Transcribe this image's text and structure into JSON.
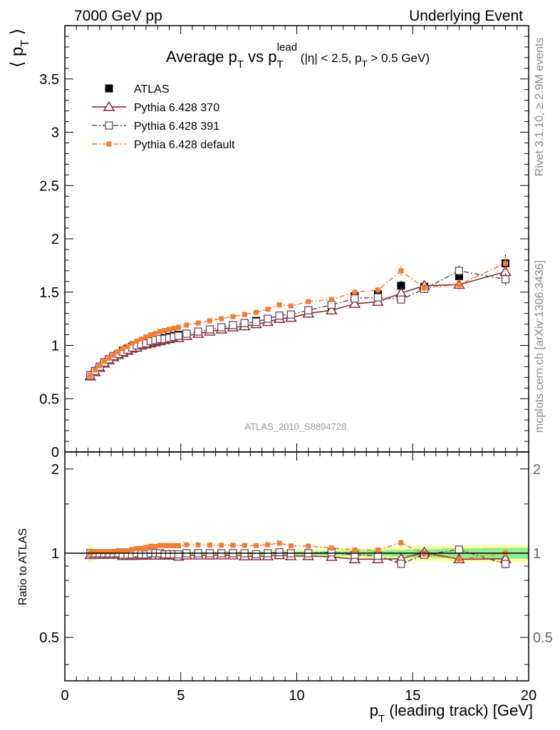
{
  "header": {
    "left": "7000 GeV pp",
    "right": "Underlying Event"
  },
  "side_labels": {
    "rivet": "Rivet 3.1.10, ≥ 2.9M events",
    "mcplots": "mcplots.cern.ch [arXiv:1306.3436]"
  },
  "chart_data": [
    {
      "type": "scatter",
      "title": "Average pT vs pTlead (|η| < 2.5, pT > 0.5 GeV)",
      "title_parts": {
        "a": "Average p",
        "a_sub": "T",
        "b": " vs p",
        "b_sub": "T",
        "b_sup": "lead",
        "c": " (|η| < 2.5, p",
        "c_sub": "T",
        "d": " > 0.5 GeV)"
      },
      "ylabel": "⟨ pT ⟩",
      "ylabel_parts": {
        "l": "⟨ p",
        "sub": "T",
        "r": " ⟩"
      },
      "xlabel": "",
      "xlim": [
        0,
        20
      ],
      "ylim": [
        0,
        4.0
      ],
      "yticks": [
        0,
        0.5,
        1,
        1.5,
        2,
        2.5,
        3,
        3.5
      ],
      "ytick_labels": [
        "0",
        "0.5",
        "1",
        "1.5",
        "2",
        "2.5",
        "3",
        "3.5"
      ],
      "watermark": "ATLAS_2010_S8894728",
      "legend_position": "top-left",
      "x": [
        1.1,
        1.3,
        1.5,
        1.7,
        1.9,
        2.1,
        2.3,
        2.5,
        2.7,
        2.9,
        3.1,
        3.3,
        3.5,
        3.7,
        3.9,
        4.1,
        4.3,
        4.5,
        4.7,
        4.9,
        5.25,
        5.75,
        6.25,
        6.75,
        7.25,
        7.75,
        8.25,
        8.75,
        9.25,
        9.75,
        10.5,
        11.5,
        12.5,
        13.5,
        14.5,
        15.5,
        17.0,
        19.0
      ],
      "series": [
        {
          "name": "ATLAS",
          "marker": "filled-square",
          "color": "#000000",
          "values": [
            0.72,
            0.76,
            0.8,
            0.84,
            0.87,
            0.9,
            0.92,
            0.95,
            0.97,
            0.99,
            1.0,
            1.02,
            1.03,
            1.04,
            1.05,
            1.06,
            1.07,
            1.08,
            1.09,
            1.1,
            1.11,
            1.13,
            1.15,
            1.17,
            1.19,
            1.21,
            1.23,
            1.25,
            1.27,
            1.29,
            1.33,
            1.37,
            1.46,
            1.48,
            1.56,
            1.55,
            1.65,
            1.77
          ],
          "errors": [
            0.005,
            0.005,
            0.005,
            0.005,
            0.005,
            0.005,
            0.005,
            0.005,
            0.005,
            0.005,
            0.005,
            0.005,
            0.006,
            0.006,
            0.006,
            0.006,
            0.006,
            0.007,
            0.007,
            0.007,
            0.008,
            0.009,
            0.01,
            0.011,
            0.012,
            0.013,
            0.014,
            0.015,
            0.016,
            0.018,
            0.02,
            0.025,
            0.03,
            0.035,
            0.045,
            0.055,
            0.06,
            0.08
          ]
        },
        {
          "name": "Pythia 6.428 370",
          "marker": "open-triangle",
          "color": "#8b1a2a",
          "line": "solid",
          "values": [
            0.71,
            0.75,
            0.79,
            0.83,
            0.86,
            0.89,
            0.91,
            0.93,
            0.95,
            0.97,
            0.98,
            1.0,
            1.01,
            1.02,
            1.03,
            1.04,
            1.05,
            1.06,
            1.07,
            1.07,
            1.09,
            1.11,
            1.13,
            1.15,
            1.17,
            1.18,
            1.2,
            1.22,
            1.25,
            1.26,
            1.3,
            1.33,
            1.39,
            1.41,
            1.49,
            1.56,
            1.57,
            1.69
          ],
          "errors": [
            0.004,
            0.004,
            0.004,
            0.004,
            0.004,
            0.004,
            0.004,
            0.004,
            0.004,
            0.004,
            0.004,
            0.004,
            0.005,
            0.005,
            0.005,
            0.005,
            0.005,
            0.005,
            0.006,
            0.006,
            0.006,
            0.007,
            0.008,
            0.008,
            0.009,
            0.01,
            0.011,
            0.012,
            0.013,
            0.014,
            0.016,
            0.02,
            0.024,
            0.028,
            0.035,
            0.04,
            0.045,
            0.06
          ]
        },
        {
          "name": "Pythia 6.428 391",
          "marker": "open-square",
          "color": "#6b4a5a",
          "line": "dash-dot",
          "values": [
            0.72,
            0.76,
            0.8,
            0.84,
            0.87,
            0.9,
            0.92,
            0.94,
            0.96,
            0.98,
            1.0,
            1.01,
            1.02,
            1.04,
            1.05,
            1.06,
            1.06,
            1.07,
            1.08,
            1.09,
            1.11,
            1.13,
            1.15,
            1.17,
            1.19,
            1.21,
            1.22,
            1.25,
            1.28,
            1.29,
            1.33,
            1.38,
            1.44,
            1.45,
            1.43,
            1.53,
            1.7,
            1.62
          ],
          "errors": [
            0.004,
            0.004,
            0.004,
            0.004,
            0.004,
            0.004,
            0.004,
            0.004,
            0.004,
            0.004,
            0.004,
            0.004,
            0.005,
            0.005,
            0.005,
            0.005,
            0.005,
            0.005,
            0.006,
            0.006,
            0.006,
            0.007,
            0.008,
            0.008,
            0.009,
            0.01,
            0.011,
            0.012,
            0.013,
            0.014,
            0.016,
            0.02,
            0.024,
            0.028,
            0.035,
            0.04,
            0.05,
            0.06
          ]
        },
        {
          "name": "Pythia 6.428 default",
          "marker": "filled-small-square",
          "color": "#f47d30",
          "line": "dash-dot",
          "values": [
            0.72,
            0.77,
            0.81,
            0.85,
            0.88,
            0.91,
            0.94,
            0.97,
            0.99,
            1.02,
            1.04,
            1.06,
            1.08,
            1.1,
            1.11,
            1.13,
            1.14,
            1.15,
            1.16,
            1.17,
            1.19,
            1.21,
            1.23,
            1.25,
            1.27,
            1.29,
            1.31,
            1.34,
            1.38,
            1.37,
            1.41,
            1.43,
            1.5,
            1.52,
            1.7,
            1.54,
            1.57,
            1.77
          ],
          "errors": [
            0.004,
            0.004,
            0.004,
            0.004,
            0.004,
            0.004,
            0.004,
            0.004,
            0.004,
            0.004,
            0.004,
            0.004,
            0.005,
            0.005,
            0.005,
            0.005,
            0.005,
            0.005,
            0.006,
            0.006,
            0.006,
            0.007,
            0.008,
            0.008,
            0.009,
            0.01,
            0.011,
            0.012,
            0.013,
            0.014,
            0.016,
            0.02,
            0.024,
            0.028,
            0.045,
            0.04,
            0.05,
            0.065
          ]
        }
      ]
    },
    {
      "type": "scatter",
      "title": "",
      "ylabel": "Ratio to ATLAS",
      "xlabel": "pT (leading track) [GeV]",
      "xlabel_parts": {
        "a": "p",
        "sub": "T",
        "b": " (leading track) [GeV]"
      },
      "xlim": [
        0,
        20
      ],
      "ylim": [
        0.35,
        2.3
      ],
      "scale": "log",
      "xticks": [
        0,
        5,
        10,
        15,
        20
      ],
      "xtick_labels": [
        "0",
        "5",
        "10",
        "15",
        "20"
      ],
      "yticks": [
        0.5,
        1,
        2
      ],
      "ytick_labels": [
        "0.5",
        "1",
        "2"
      ],
      "right_tick_labels": [
        "0.5",
        "1",
        "2"
      ],
      "reference_line": 1,
      "band": {
        "stat_color": "#90ee90",
        "total_color": "#ffff99",
        "x": [
          1.1,
          1.3,
          1.5,
          1.7,
          1.9,
          2.1,
          2.3,
          2.5,
          2.7,
          2.9,
          3.1,
          3.3,
          3.5,
          3.7,
          3.9,
          4.1,
          4.3,
          4.5,
          4.7,
          4.9,
          5.25,
          5.75,
          6.25,
          6.75,
          7.25,
          7.75,
          8.25,
          8.75,
          9.25,
          9.75,
          10.5,
          11.5,
          12.5,
          13.5,
          14.5,
          15.5,
          17.0,
          19.0
        ],
        "stat": [
          0.008,
          0.007,
          0.007,
          0.006,
          0.006,
          0.006,
          0.006,
          0.006,
          0.006,
          0.006,
          0.006,
          0.006,
          0.006,
          0.006,
          0.006,
          0.006,
          0.007,
          0.007,
          0.007,
          0.007,
          0.008,
          0.008,
          0.009,
          0.009,
          0.01,
          0.011,
          0.012,
          0.012,
          0.013,
          0.014,
          0.015,
          0.018,
          0.02,
          0.024,
          0.028,
          0.035,
          0.04,
          0.045
        ],
        "total": [
          0.07,
          0.03,
          0.025,
          0.02,
          0.02,
          0.02,
          0.02,
          0.02,
          0.02,
          0.02,
          0.02,
          0.02,
          0.02,
          0.02,
          0.02,
          0.02,
          0.02,
          0.02,
          0.02,
          0.02,
          0.02,
          0.02,
          0.02,
          0.02,
          0.02,
          0.02,
          0.02,
          0.02,
          0.025,
          0.03,
          0.03,
          0.035,
          0.04,
          0.045,
          0.05,
          0.06,
          0.065,
          0.07
        ]
      }
    }
  ]
}
